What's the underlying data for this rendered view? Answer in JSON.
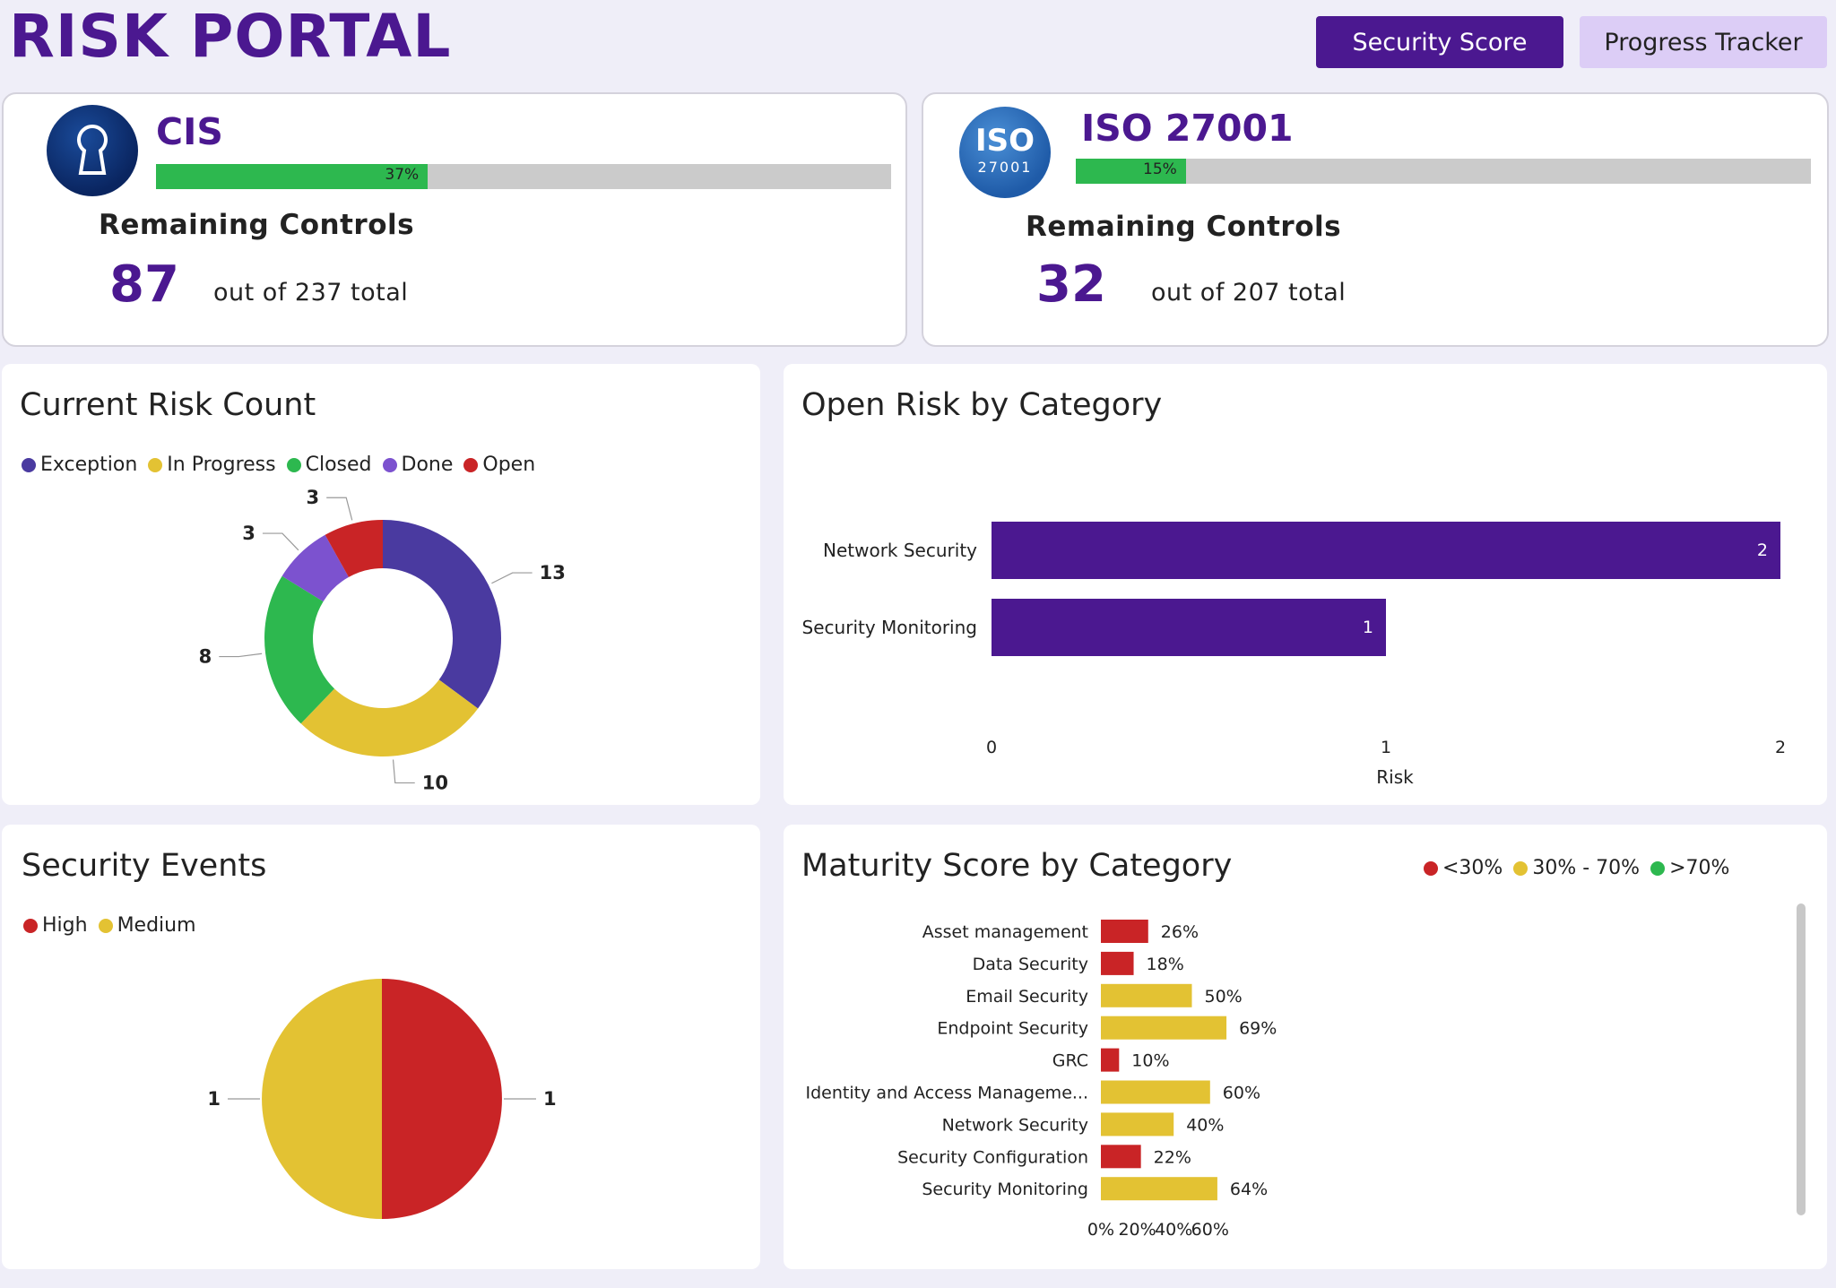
{
  "app": {
    "title": "RISK PORTAL"
  },
  "nav": {
    "security_score": "Security Score",
    "progress_tracker": "Progress Tracker"
  },
  "frameworks": [
    {
      "name": "CIS",
      "badge_icon": "keyhole-icon",
      "progress_pct": 37,
      "progress_label": "37%",
      "remaining_label": "Remaining Controls",
      "remaining": "87",
      "total_text": "out of 237 total"
    },
    {
      "name": "ISO 27001",
      "badge_icon": "iso-logo-icon",
      "badge_text_top": "ISO",
      "badge_text_bottom": "27001",
      "progress_pct": 15,
      "progress_label": "15%",
      "remaining_label": "Remaining Controls",
      "remaining": "32",
      "total_text": "out of 207 total"
    }
  ],
  "risk_count": {
    "title": "Current Risk Count",
    "chart_data": {
      "type": "donut",
      "legend": [
        {
          "label": "Exception",
          "color": "#4a3aa0"
        },
        {
          "label": "In Progress",
          "color": "#e3c233"
        },
        {
          "label": "Closed",
          "color": "#2db84f"
        },
        {
          "label": "Done",
          "color": "#7c52cf"
        },
        {
          "label": "Open",
          "color": "#c92426"
        }
      ],
      "slices": [
        {
          "label": "Exception",
          "value": 13,
          "color": "#4a3aa0"
        },
        {
          "label": "In Progress",
          "value": 10,
          "color": "#e3c233"
        },
        {
          "label": "Closed",
          "value": 8,
          "color": "#2db84f"
        },
        {
          "label": "Done",
          "value": 3,
          "color": "#7c52cf"
        },
        {
          "label": "Open",
          "value": 3,
          "color": "#c92426"
        }
      ]
    }
  },
  "open_risk": {
    "title": "Open Risk by Category",
    "chart_data": {
      "type": "bar",
      "orientation": "horizontal",
      "categories": [
        "Network Security",
        "Security Monitoring"
      ],
      "values": [
        2,
        1
      ],
      "xlabel": "Risk",
      "xlim": [
        0,
        2
      ],
      "ticks": [
        "0",
        "1",
        "2"
      ],
      "color": "#4b1890"
    }
  },
  "security_events": {
    "title": "Security Events",
    "chart_data": {
      "type": "pie",
      "legend": [
        {
          "label": "High",
          "color": "#c92426"
        },
        {
          "label": "Medium",
          "color": "#e3c233"
        }
      ],
      "slices": [
        {
          "label": "High",
          "value": 1,
          "color": "#c92426"
        },
        {
          "label": "Medium",
          "value": 1,
          "color": "#e3c233"
        }
      ]
    }
  },
  "maturity": {
    "title": "Maturity Score by Category",
    "chart_data": {
      "type": "bar",
      "orientation": "horizontal",
      "legend": [
        {
          "label": "<30%",
          "color": "#c92426"
        },
        {
          "label": "30% - 70%",
          "color": "#e3c233"
        },
        {
          "label": ">70%",
          "color": "#2db84f"
        }
      ],
      "categories": [
        "Asset management",
        "Data Security",
        "Email Security",
        "Endpoint Security",
        "GRC",
        "Identity and Access Manageme...",
        "Network Security",
        "Security Configuration",
        "Security Monitoring"
      ],
      "values": [
        26,
        18,
        50,
        69,
        10,
        60,
        40,
        22,
        64
      ],
      "value_labels": [
        "26%",
        "18%",
        "50%",
        "69%",
        "10%",
        "60%",
        "40%",
        "22%",
        "64%"
      ],
      "xlim": [
        0,
        75
      ],
      "ticks": [
        {
          "value": 0,
          "label": "0%"
        },
        {
          "value": 20,
          "label": "20%"
        },
        {
          "value": 40,
          "label": "40%"
        },
        {
          "value": 60,
          "label": "60%"
        }
      ],
      "colors": {
        "low": "#c92426",
        "mid": "#e3c233",
        "high": "#2db84f"
      }
    }
  }
}
